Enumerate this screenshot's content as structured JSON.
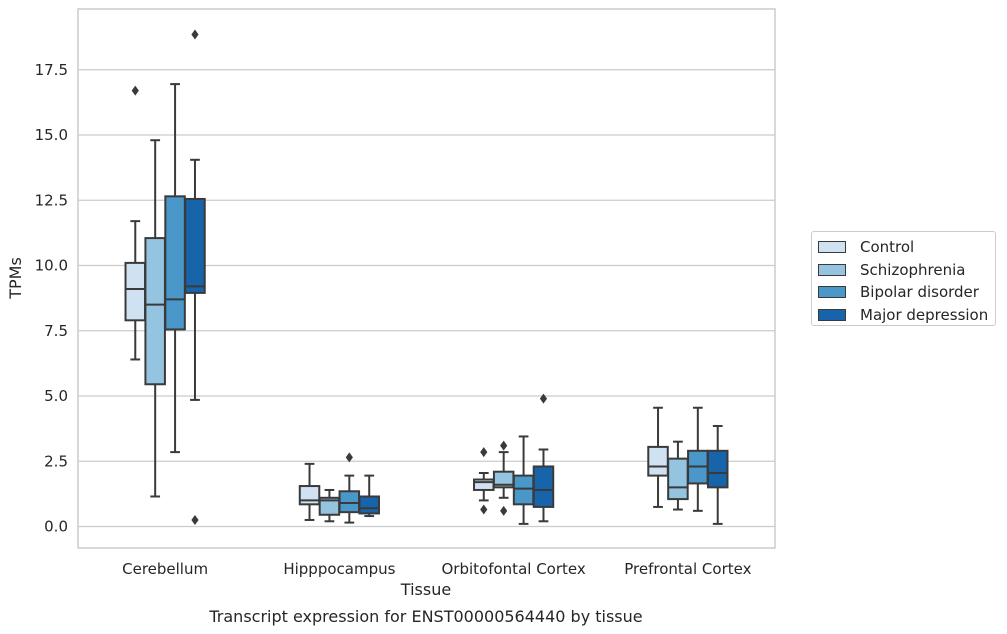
{
  "chart_data": {
    "type": "box",
    "title": "",
    "caption": "Transcript expression for ENST00000564440 by tissue",
    "xlabel": "Tissue",
    "ylabel": "TPMs",
    "ylim": [
      -0.8,
      19.8
    ],
    "yticks": [
      "0.0",
      "2.5",
      "5.0",
      "7.5",
      "10.0",
      "12.5",
      "15.0",
      "17.5"
    ],
    "grid": "horizontal",
    "legend_position": "right",
    "categories": [
      "Cerebellum",
      "Hipppocampus",
      "Orbitofontal Cortex",
      "Prefrontal Cortex"
    ],
    "series": [
      {
        "name": "Control",
        "color": "#d0e1f2",
        "boxes": [
          {
            "whisker_low": 6.4,
            "q1": 7.9,
            "median": 9.1,
            "q3": 10.1,
            "whisker_high": 11.7,
            "outliers": [
              16.7
            ]
          },
          {
            "whisker_low": 0.25,
            "q1": 0.85,
            "median": 1.0,
            "q3": 1.55,
            "whisker_high": 2.4,
            "outliers": []
          },
          {
            "whisker_low": 1.0,
            "q1": 1.4,
            "median": 1.7,
            "q3": 1.8,
            "whisker_high": 2.05,
            "outliers": [
              2.85,
              0.65
            ]
          },
          {
            "whisker_low": 0.75,
            "q1": 1.95,
            "median": 2.3,
            "q3": 3.05,
            "whisker_high": 4.55,
            "outliers": []
          }
        ]
      },
      {
        "name": "Schizophrenia",
        "color": "#94c4df",
        "boxes": [
          {
            "whisker_low": 1.15,
            "q1": 5.45,
            "median": 8.5,
            "q3": 11.05,
            "whisker_high": 14.8,
            "outliers": []
          },
          {
            "whisker_low": 0.2,
            "q1": 0.45,
            "median": 1.0,
            "q3": 1.1,
            "whisker_high": 1.4,
            "outliers": []
          },
          {
            "whisker_low": 1.1,
            "q1": 1.5,
            "median": 1.6,
            "q3": 2.1,
            "whisker_high": 2.85,
            "outliers": [
              3.1,
              0.6
            ]
          },
          {
            "whisker_low": 0.65,
            "q1": 1.05,
            "median": 1.5,
            "q3": 2.6,
            "whisker_high": 3.25,
            "outliers": []
          }
        ]
      },
      {
        "name": "Bipolar disorder",
        "color": "#4a98c9",
        "boxes": [
          {
            "whisker_low": 2.85,
            "q1": 7.55,
            "median": 8.7,
            "q3": 12.65,
            "whisker_high": 16.95,
            "outliers": []
          },
          {
            "whisker_low": 0.15,
            "q1": 0.55,
            "median": 0.9,
            "q3": 1.35,
            "whisker_high": 1.95,
            "outliers": [
              2.65
            ]
          },
          {
            "whisker_low": 0.1,
            "q1": 0.85,
            "median": 1.45,
            "q3": 1.95,
            "whisker_high": 3.45,
            "outliers": []
          },
          {
            "whisker_low": 0.6,
            "q1": 1.65,
            "median": 2.3,
            "q3": 2.9,
            "whisker_high": 4.55,
            "outliers": []
          }
        ]
      },
      {
        "name": "Major depression",
        "color": "#1764ab",
        "boxes": [
          {
            "whisker_low": 4.85,
            "q1": 8.95,
            "median": 9.2,
            "q3": 12.55,
            "whisker_high": 14.05,
            "outliers": [
              0.25,
              18.85
            ]
          },
          {
            "whisker_low": 0.4,
            "q1": 0.5,
            "median": 0.7,
            "q3": 1.15,
            "whisker_high": 1.95,
            "outliers": []
          },
          {
            "whisker_low": 0.2,
            "q1": 0.75,
            "median": 1.4,
            "q3": 2.3,
            "whisker_high": 2.95,
            "outliers": [
              4.9
            ]
          },
          {
            "whisker_low": 0.1,
            "q1": 1.5,
            "median": 2.05,
            "q3": 2.9,
            "whisker_high": 3.85,
            "outliers": []
          }
        ]
      }
    ]
  }
}
